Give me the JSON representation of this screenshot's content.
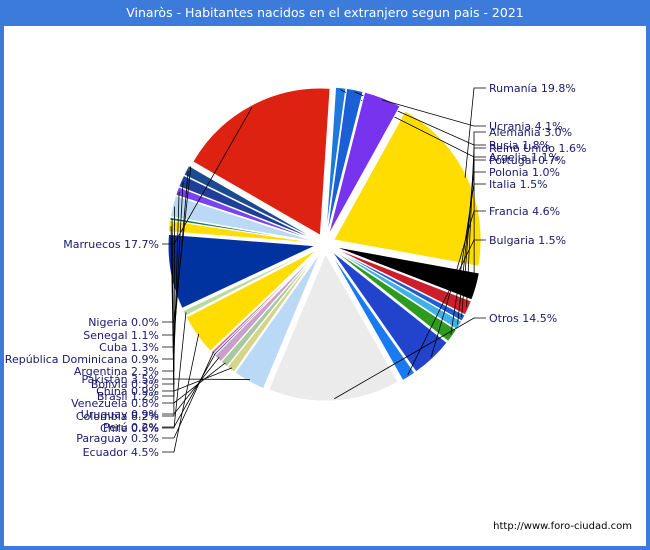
{
  "title": "Vinaròs - Habitantes nacidos en el extranjero segun pais - 2021",
  "source": "http://www.foro-ciudad.com",
  "chart_data": {
    "type": "pie",
    "title": "Vinaròs - Habitantes nacidos en el extranjero segun pais - 2021",
    "slices": [
      {
        "name": "Rumanía",
        "value": 19.8,
        "label": "Rumanía 19.8%",
        "color": "#ffdd00"
      },
      {
        "name": "Alemania",
        "value": 3.0,
        "label": "Alemania 3.0%",
        "color": "#000000"
      },
      {
        "name": "Reino Unido",
        "value": 1.6,
        "label": "Reino Unido 1.6%",
        "color": "#cc1f2b"
      },
      {
        "name": "Portugal",
        "value": 0.7,
        "label": "Portugal 0.7%",
        "color": "#1d5fd6"
      },
      {
        "name": "Polonia",
        "value": 1.0,
        "label": "Polonia 1.0%",
        "color": "#3fb0e8"
      },
      {
        "name": "Italia",
        "value": 1.5,
        "label": "Italia 1.5%",
        "color": "#2e9a1e"
      },
      {
        "name": "Francia",
        "value": 4.6,
        "label": "Francia 4.6%",
        "color": "#2244cc"
      },
      {
        "name": "Bulgaria",
        "value": 1.5,
        "label": "Bulgaria 1.5%",
        "color": "#1a7af0"
      },
      {
        "name": "Otros",
        "value": 14.5,
        "label": "Otros 14.5%",
        "color": "#ebebeb"
      },
      {
        "name": "Pakistán",
        "value": 3.5,
        "label": "Pakistán 3.5%",
        "color": "#b9d9f7"
      },
      {
        "name": "China",
        "value": 0.9,
        "label": "China 0.9%",
        "color": "#d4d48a"
      },
      {
        "name": "Venezuela",
        "value": 0.8,
        "label": "Venezuela 0.8%",
        "color": "#a8c8a0"
      },
      {
        "name": "Uruguay",
        "value": 0.9,
        "label": "Uruguay 0.9%",
        "color": "#c8a0c8"
      },
      {
        "name": "Perú",
        "value": 0.2,
        "label": "Perú 0.2%",
        "color": "#3355aa"
      },
      {
        "name": "Paraguay",
        "value": 0.3,
        "label": "Paraguay 0.3%",
        "color": "#d46a8a"
      },
      {
        "name": "Ecuador",
        "value": 4.5,
        "label": "Ecuador 4.5%",
        "color": "#ffdd00"
      },
      {
        "name": "Chile",
        "value": 0.6,
        "label": "Chile 0.6%",
        "color": "#b9d9a0"
      },
      {
        "name": "Colombia",
        "value": 8.2,
        "label": "Colombia 8.2%",
        "color": "#0033a0"
      },
      {
        "name": "Brasil",
        "value": 1.2,
        "label": "Brasil 1.2%",
        "color": "#ffdd00"
      },
      {
        "name": "Bolivia",
        "value": 0.3,
        "label": "Bolivia 0.3%",
        "color": "#1a7a5a"
      },
      {
        "name": "Argentina",
        "value": 2.3,
        "label": "Argentina 2.3%",
        "color": "#b9d9f7"
      },
      {
        "name": "República Dominicana",
        "value": 0.9,
        "label": "República Dominicana 0.9%",
        "color": "#7744ee"
      },
      {
        "name": "Cuba",
        "value": 1.3,
        "label": "Cuba 1.3%",
        "color": "#1d3f99"
      },
      {
        "name": "Senegal",
        "value": 1.1,
        "label": "Senegal 1.1%",
        "color": "#1a4a90"
      },
      {
        "name": "Nigeria",
        "value": 0.0,
        "label": "Nigeria 0.0%",
        "color": "#7a8a9a"
      },
      {
        "name": "Marruecos",
        "value": 17.7,
        "label": "Marruecos 17.7%",
        "color": "#dd2211"
      },
      {
        "name": "Argelia",
        "value": 1.1,
        "label": "Argelia 1.1%",
        "color": "#2277dd"
      },
      {
        "name": "Rusia",
        "value": 1.8,
        "label": "Rusia 1.8%",
        "color": "#1a5fd6"
      },
      {
        "name": "Ucrania",
        "value": 4.1,
        "label": "Ucrania 4.1%",
        "color": "#7733ee"
      }
    ]
  }
}
